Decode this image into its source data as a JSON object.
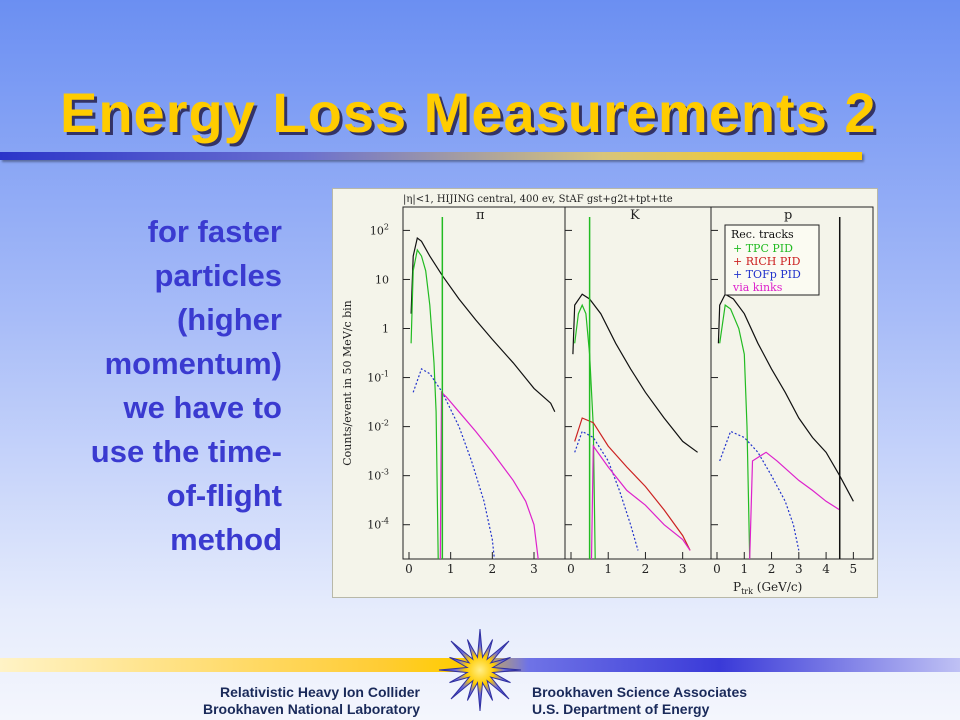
{
  "slide": {
    "title": "Energy Loss Measurements 2",
    "body_lines": [
      "for faster",
      "particles",
      "(higher",
      "momentum)",
      "we have to",
      "use the time-",
      "of-flight",
      "method"
    ]
  },
  "footer": {
    "left_line1": "Relativistic Heavy Ion Collider",
    "left_line2": "Brookhaven National Laboratory",
    "right_line1": "Brookhaven Science Associates",
    "right_line2": "U.S. Department of Energy"
  },
  "chart_data": {
    "type": "line",
    "header": "|η|<1, HIJING central, 400 ev, StAF gst+g2t+tpt+tte",
    "ylabel": "Counts/event in 50 MeV/c bin",
    "xlabel": "P",
    "xlabel_sub": "trk",
    "xlabel_unit": "(GeV/c)",
    "ylog": true,
    "y_ticks": [
      {
        "value": 100,
        "mant": "10",
        "exp": "2"
      },
      {
        "value": 10,
        "mant": "10",
        "exp": ""
      },
      {
        "value": 1,
        "mant": "1",
        "exp": ""
      },
      {
        "value": 0.1,
        "mant": "10",
        "exp": "-1"
      },
      {
        "value": 0.01,
        "mant": "10",
        "exp": "-2"
      },
      {
        "value": 0.001,
        "mant": "10",
        "exp": "-3"
      },
      {
        "value": 0.0001,
        "mant": "10",
        "exp": "-4"
      }
    ],
    "ylim": [
      2e-05,
      300
    ],
    "legend": {
      "title": "Rec. tracks",
      "entries": [
        {
          "label": "+ TPC PID",
          "color": "#22bb22"
        },
        {
          "label": "+ RICH PID",
          "color": "#cc2222"
        },
        {
          "label": "+ TOFp PID",
          "color": "#2233cc"
        },
        {
          "label": "via kinks",
          "color": "#dd22cc"
        }
      ]
    },
    "panels": [
      {
        "label": "π",
        "xlim": [
          0,
          3.6
        ],
        "xticks": [
          "0",
          "1",
          "2",
          "3"
        ],
        "series": [
          {
            "name": "Rec. tracks",
            "color": "#111111",
            "points": [
              [
                0.05,
                2
              ],
              [
                0.1,
                30
              ],
              [
                0.2,
                70
              ],
              [
                0.3,
                60
              ],
              [
                0.5,
                30
              ],
              [
                0.8,
                12
              ],
              [
                1.2,
                4
              ],
              [
                1.6,
                1.5
              ],
              [
                2.0,
                0.6
              ],
              [
                2.5,
                0.2
              ],
              [
                3.0,
                0.06
              ],
              [
                3.4,
                0.03
              ],
              [
                3.5,
                0.02
              ]
            ]
          },
          {
            "name": "TPC PID",
            "color": "#22bb22",
            "points": [
              [
                0.05,
                0.5
              ],
              [
                0.1,
                15
              ],
              [
                0.2,
                40
              ],
              [
                0.3,
                30
              ],
              [
                0.4,
                15
              ],
              [
                0.5,
                3
              ],
              [
                0.6,
                0.2
              ],
              [
                0.65,
                0.02
              ],
              [
                0.7,
                2e-05
              ]
            ]
          },
          {
            "name": "TOFp PID",
            "color": "#2233cc",
            "dashed": true,
            "points": [
              [
                0.1,
                0.05
              ],
              [
                0.3,
                0.15
              ],
              [
                0.5,
                0.12
              ],
              [
                0.8,
                0.05
              ],
              [
                1.2,
                0.01
              ],
              [
                1.5,
                0.002
              ],
              [
                1.8,
                0.0003
              ],
              [
                2.0,
                5e-05
              ],
              [
                2.05,
                2e-05
              ]
            ]
          },
          {
            "name": "via kinks",
            "color": "#dd22cc",
            "points": [
              [
                0.75,
                2e-05
              ],
              [
                0.78,
                0.05
              ],
              [
                0.9,
                0.04
              ],
              [
                1.2,
                0.02
              ],
              [
                1.6,
                0.008
              ],
              [
                2.0,
                0.003
              ],
              [
                2.5,
                0.0008
              ],
              [
                2.8,
                0.0003
              ],
              [
                3.0,
                0.0001
              ],
              [
                3.1,
                2e-05
              ]
            ]
          }
        ],
        "vlines": [
          {
            "x": 0.8,
            "color": "#22bb22"
          }
        ]
      },
      {
        "label": "K",
        "xlim": [
          0,
          3.6
        ],
        "xticks": [
          "0",
          "1",
          "2",
          "3"
        ],
        "series": [
          {
            "name": "Rec. tracks",
            "color": "#111111",
            "points": [
              [
                0.05,
                0.3
              ],
              [
                0.1,
                3
              ],
              [
                0.3,
                5
              ],
              [
                0.5,
                4
              ],
              [
                0.8,
                2
              ],
              [
                1.2,
                0.5
              ],
              [
                1.6,
                0.15
              ],
              [
                2.0,
                0.05
              ],
              [
                2.5,
                0.015
              ],
              [
                3.0,
                0.005
              ],
              [
                3.4,
                0.003
              ]
            ]
          },
          {
            "name": "TPC PID",
            "color": "#22bb22",
            "points": [
              [
                0.1,
                0.5
              ],
              [
                0.2,
                2
              ],
              [
                0.3,
                3
              ],
              [
                0.4,
                2
              ],
              [
                0.5,
                0.3
              ],
              [
                0.6,
                0.01
              ],
              [
                0.65,
                2e-05
              ]
            ]
          },
          {
            "name": "RICH PID",
            "color": "#cc2222",
            "points": [
              [
                0.1,
                0.005
              ],
              [
                0.3,
                0.015
              ],
              [
                0.6,
                0.012
              ],
              [
                1.0,
                0.004
              ],
              [
                1.5,
                0.0015
              ],
              [
                2.0,
                0.0006
              ],
              [
                2.5,
                0.0002
              ],
              [
                3.0,
                6e-05
              ],
              [
                3.2,
                3e-05
              ]
            ]
          },
          {
            "name": "TOFp PID",
            "color": "#2233cc",
            "dashed": true,
            "points": [
              [
                0.1,
                0.003
              ],
              [
                0.3,
                0.008
              ],
              [
                0.6,
                0.006
              ],
              [
                1.0,
                0.002
              ],
              [
                1.3,
                0.0005
              ],
              [
                1.6,
                0.0001
              ],
              [
                1.8,
                3e-05
              ]
            ]
          },
          {
            "name": "via kinks",
            "color": "#dd22cc",
            "points": [
              [
                0.55,
                2e-05
              ],
              [
                0.6,
                0.004
              ],
              [
                1.0,
                0.0015
              ],
              [
                1.5,
                0.0005
              ],
              [
                2.0,
                0.00025
              ],
              [
                2.5,
                0.0001
              ],
              [
                3.0,
                5e-05
              ],
              [
                3.2,
                3e-05
              ]
            ]
          }
        ],
        "vlines": [
          {
            "x": 0.5,
            "color": "#22bb22"
          }
        ]
      },
      {
        "label": "p",
        "xlim": [
          0,
          5.5
        ],
        "xticks": [
          "0",
          "1",
          "2",
          "3",
          "4",
          "5"
        ],
        "series": [
          {
            "name": "Rec. tracks",
            "color": "#111111",
            "points": [
              [
                0.05,
                0.5
              ],
              [
                0.1,
                3
              ],
              [
                0.3,
                5
              ],
              [
                0.6,
                4
              ],
              [
                1.0,
                2
              ],
              [
                1.5,
                0.5
              ],
              [
                2.0,
                0.15
              ],
              [
                2.5,
                0.05
              ],
              [
                3.0,
                0.015
              ],
              [
                3.5,
                0.006
              ],
              [
                4.0,
                0.003
              ],
              [
                4.5,
                0.001
              ],
              [
                5.0,
                0.0003
              ]
            ]
          },
          {
            "name": "TPC PID",
            "color": "#22bb22",
            "points": [
              [
                0.1,
                0.5
              ],
              [
                0.3,
                3
              ],
              [
                0.5,
                2.5
              ],
              [
                0.8,
                1
              ],
              [
                1.0,
                0.3
              ],
              [
                1.1,
                0.01
              ],
              [
                1.2,
                2e-05
              ]
            ]
          },
          {
            "name": "TOFp PID",
            "color": "#2233cc",
            "dashed": true,
            "points": [
              [
                0.1,
                0.002
              ],
              [
                0.5,
                0.008
              ],
              [
                1.0,
                0.006
              ],
              [
                1.5,
                0.003
              ],
              [
                2.0,
                0.001
              ],
              [
                2.5,
                0.0003
              ],
              [
                2.8,
                0.0001
              ],
              [
                3.0,
                3e-05
              ]
            ]
          },
          {
            "name": "via kinks",
            "color": "#dd22cc",
            "points": [
              [
                1.2,
                2e-05
              ],
              [
                1.3,
                0.002
              ],
              [
                1.8,
                0.003
              ],
              [
                2.2,
                0.002
              ],
              [
                3.0,
                0.0008
              ],
              [
                3.5,
                0.0005
              ],
              [
                4.0,
                0.0003
              ],
              [
                4.5,
                0.0002
              ]
            ]
          }
        ],
        "vlines": [
          {
            "x": 4.5,
            "color": "#111111"
          }
        ]
      }
    ]
  }
}
